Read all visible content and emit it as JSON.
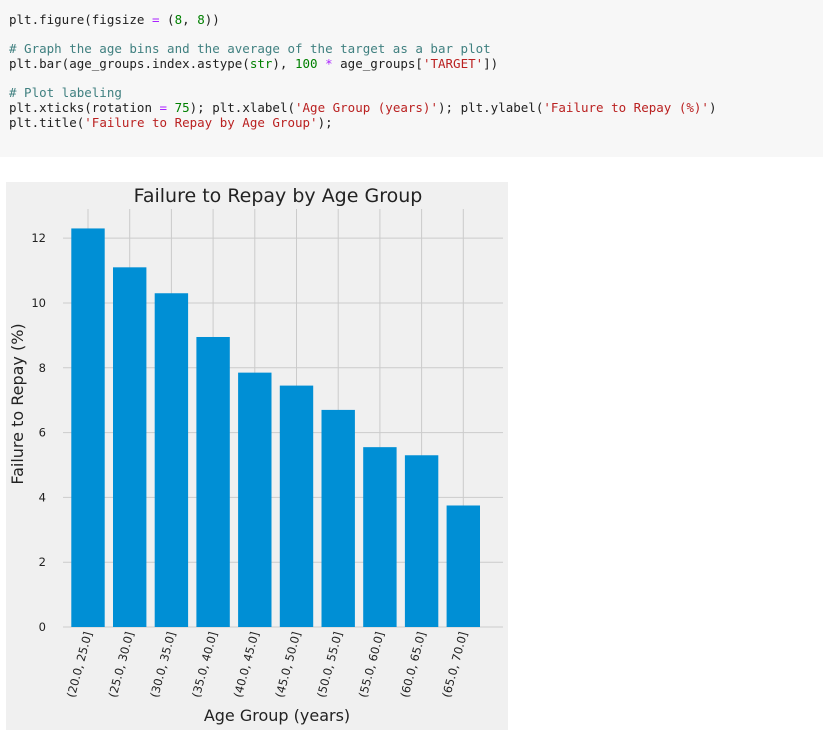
{
  "code_cell": {
    "lines": [
      [
        {
          "t": "plt.figure(figsize ",
          "c": ""
        },
        {
          "t": "=",
          "c": "op"
        },
        {
          "t": " (",
          "c": ""
        },
        {
          "t": "8",
          "c": "num"
        },
        {
          "t": ", ",
          "c": ""
        },
        {
          "t": "8",
          "c": "num"
        },
        {
          "t": "))",
          "c": ""
        }
      ],
      [],
      [
        {
          "t": "# Graph the age bins and the average of the target as a bar plot",
          "c": "comment"
        }
      ],
      [
        {
          "t": "plt.bar(age_groups.index.astype(",
          "c": ""
        },
        {
          "t": "str",
          "c": "kw"
        },
        {
          "t": "), ",
          "c": ""
        },
        {
          "t": "100",
          "c": "num"
        },
        {
          "t": " ",
          "c": ""
        },
        {
          "t": "*",
          "c": "op"
        },
        {
          "t": " age_groups[",
          "c": ""
        },
        {
          "t": "'TARGET'",
          "c": "str"
        },
        {
          "t": "])",
          "c": ""
        }
      ],
      [],
      [
        {
          "t": "# Plot labeling",
          "c": "comment"
        }
      ],
      [
        {
          "t": "plt.xticks(rotation ",
          "c": ""
        },
        {
          "t": "=",
          "c": "op"
        },
        {
          "t": " ",
          "c": ""
        },
        {
          "t": "75",
          "c": "num"
        },
        {
          "t": "); plt.xlabel(",
          "c": ""
        },
        {
          "t": "'Age Group (years)'",
          "c": "str"
        },
        {
          "t": "); plt.ylabel(",
          "c": ""
        },
        {
          "t": "'Failure to Repay (%)'",
          "c": "str"
        },
        {
          "t": ")",
          "c": ""
        }
      ],
      [
        {
          "t": "plt.title(",
          "c": ""
        },
        {
          "t": "'Failure to Repay by Age Group'",
          "c": "str"
        },
        {
          "t": ");",
          "c": ""
        }
      ]
    ]
  },
  "colors": {
    "bar": "#008fd5",
    "grid": "#cbcbcb",
    "plot_bg": "#f0f0f0",
    "text": "#222222",
    "comment": "#408080",
    "string": "#ba2121",
    "number": "#008000",
    "operator": "#aa22ff"
  },
  "chart_data": {
    "type": "bar",
    "title": "Failure to Repay by Age Group",
    "xlabel": "Age Group (years)",
    "ylabel": "Failure to Repay (%)",
    "categories": [
      "(20.0, 25.0]",
      "(25.0, 30.0]",
      "(30.0, 35.0]",
      "(35.0, 40.0]",
      "(40.0, 45.0]",
      "(45.0, 50.0]",
      "(50.0, 55.0]",
      "(55.0, 60.0]",
      "(60.0, 65.0]",
      "(65.0, 70.0]"
    ],
    "values": [
      12.3,
      11.1,
      10.3,
      8.95,
      7.85,
      7.45,
      6.7,
      5.55,
      5.3,
      3.75
    ],
    "yticks": [
      0,
      2,
      4,
      6,
      8,
      10,
      12
    ],
    "ylim": [
      0,
      12.9
    ],
    "xtick_rotation": 75,
    "grid": true,
    "style": "fivethirtyeight"
  }
}
